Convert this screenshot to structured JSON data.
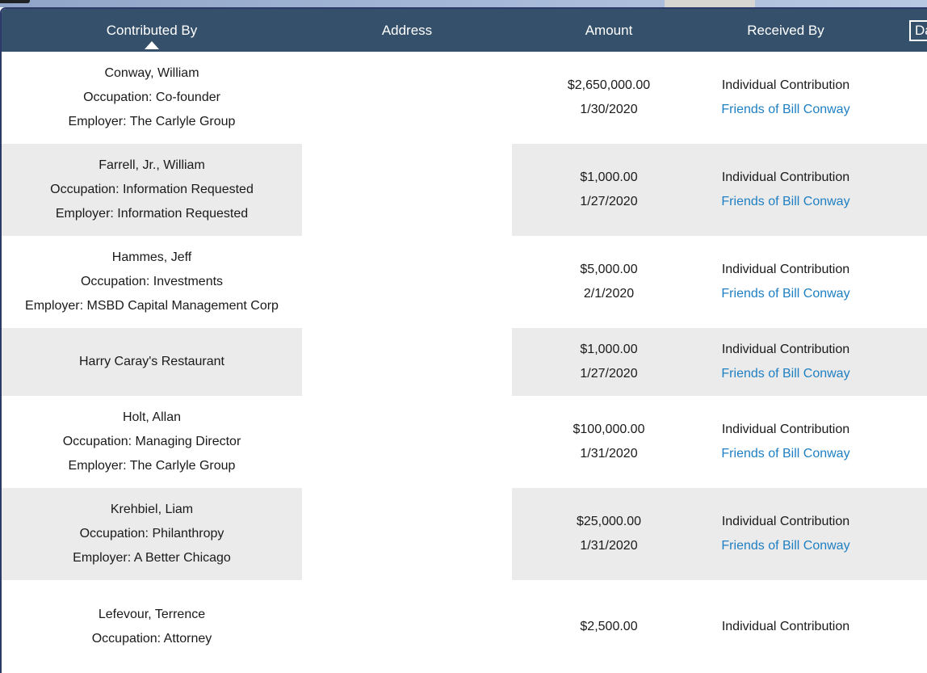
{
  "header": {
    "columns": [
      {
        "label": "Contributed By",
        "sorted": "ascending"
      },
      {
        "label": "Address"
      },
      {
        "label": "Amount"
      },
      {
        "label": "Received By"
      },
      {
        "label": "Date",
        "focused": true
      }
    ]
  },
  "table": {
    "rows": [
      {
        "contributor": [
          "Conway, William",
          "Occupation: Co-founder",
          "Employer: The Carlyle Group"
        ],
        "address": "",
        "amount": "$2,650,000.00",
        "date": "1/30/2020",
        "received_type": "Individual Contribution",
        "received_committee": "Friends of Bill Conway",
        "striped": false
      },
      {
        "contributor": [
          "Farrell, Jr., William",
          "Occupation: Information Requested",
          "Employer: Information Requested"
        ],
        "address": "",
        "amount": "$1,000.00",
        "date": "1/27/2020",
        "received_type": "Individual Contribution",
        "received_committee": "Friends of Bill Conway",
        "striped": true
      },
      {
        "contributor": [
          "Hammes, Jeff",
          "Occupation: Investments",
          "Employer: MSBD Capital Management Corp"
        ],
        "address": "",
        "amount": "$5,000.00",
        "date": "2/1/2020",
        "received_type": "Individual Contribution",
        "received_committee": "Friends of Bill Conway",
        "striped": false
      },
      {
        "contributor": [
          "Harry Caray's Restaurant"
        ],
        "address": "",
        "amount": "$1,000.00",
        "date": "1/27/2020",
        "received_type": "Individual Contribution",
        "received_committee": "Friends of Bill Conway",
        "striped": true
      },
      {
        "contributor": [
          "Holt, Allan",
          "Occupation: Managing Director",
          "Employer: The Carlyle Group"
        ],
        "address": "",
        "amount": "$100,000.00",
        "date": "1/31/2020",
        "received_type": "Individual Contribution",
        "received_committee": "Friends of Bill Conway",
        "striped": false
      },
      {
        "contributor": [
          "Krehbiel, Liam",
          "Occupation: Philanthropy",
          "Employer: A Better Chicago"
        ],
        "address": "",
        "amount": "$25,000.00",
        "date": "1/31/2020",
        "received_type": "Individual Contribution",
        "received_committee": "Friends of Bill Conway",
        "striped": true
      },
      {
        "contributor": [
          "Lefevour, Terrence",
          "Occupation: Attorney"
        ],
        "address": "",
        "amount": "$2,500.00",
        "date": "",
        "received_type": "Individual Contribution",
        "received_committee": "",
        "striped": false,
        "last": true
      }
    ]
  },
  "colors": {
    "header_bg": "#35506b",
    "table_border": "#2b3a69",
    "stripe": "#ebebeb",
    "link": "#1e7fc2",
    "text": "#1a1a1a"
  }
}
